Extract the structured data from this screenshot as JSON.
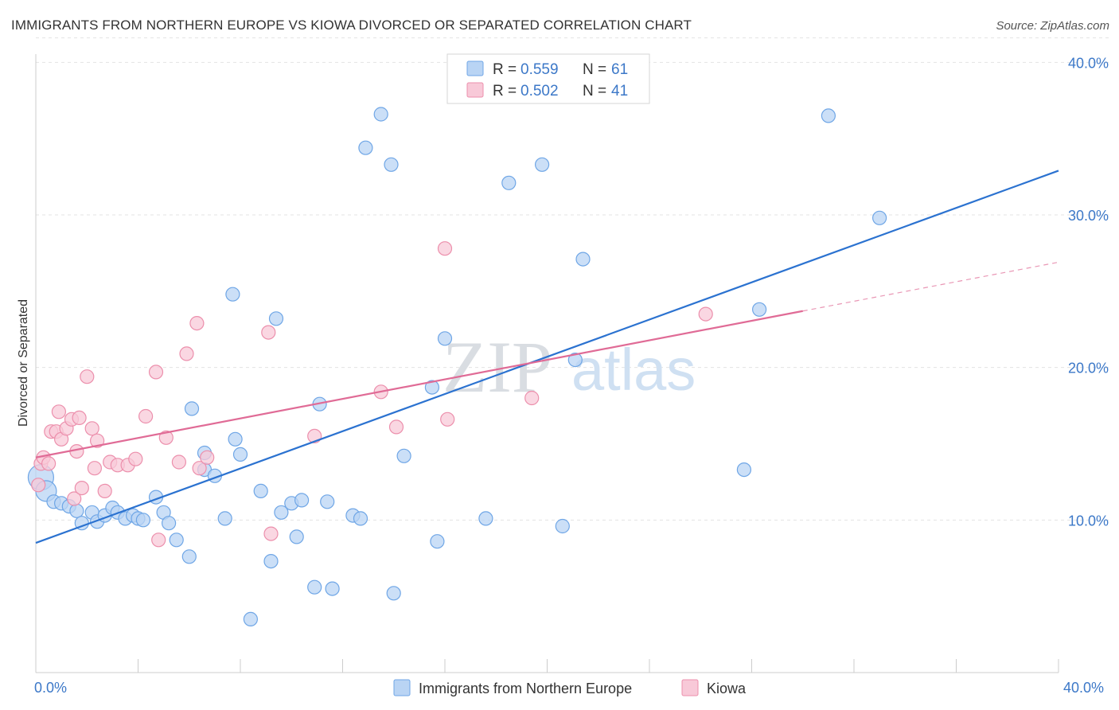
{
  "header": {
    "title": "IMMIGRANTS FROM NORTHERN EUROPE VS KIOWA DIVORCED OR SEPARATED CORRELATION CHART",
    "source": "Source: ZipAtlas.com"
  },
  "watermark": {
    "zip": "ZIP",
    "atlas": "atlas"
  },
  "legend": {
    "r_label": "R = ",
    "n_label": "N = ",
    "entries": [
      {
        "r": "0.559",
        "n": "61"
      },
      {
        "r": "0.502",
        "n": "41"
      }
    ]
  },
  "chart_data": {
    "type": "scatter",
    "title": "IMMIGRANTS FROM NORTHERN EUROPE VS KIOWA DIVORCED OR SEPARATED CORRELATION CHART",
    "xlabel": "",
    "ylabel": "Divorced or Separated",
    "xlim": [
      0,
      40
    ],
    "ylim": [
      0,
      42
    ],
    "x_tick_labels": [
      "0.0%",
      "40.0%"
    ],
    "y_ticks": [
      {
        "value": 10,
        "label": "10.0%"
      },
      {
        "value": 20,
        "label": "20.0%"
      },
      {
        "value": 30,
        "label": "30.0%"
      },
      {
        "value": 40,
        "label": "40.0%"
      }
    ],
    "grid": true,
    "legend_position": "top-center",
    "series": [
      {
        "name": "Immigrants from Northern Europe",
        "color": "#6fa6e6",
        "fill": "#b9d4f4",
        "line_color": "#2b72d0",
        "trend": {
          "x": [
            0,
            40
          ],
          "y": [
            8.5,
            32.9
          ]
        },
        "points": [
          [
            0.2,
            12.8
          ],
          [
            0.4,
            11.9
          ],
          [
            0.7,
            11.2
          ],
          [
            1.0,
            11.1
          ],
          [
            1.3,
            10.9
          ],
          [
            1.6,
            10.6
          ],
          [
            1.8,
            9.8
          ],
          [
            2.2,
            10.5
          ],
          [
            2.4,
            9.9
          ],
          [
            2.7,
            10.3
          ],
          [
            3.0,
            10.8
          ],
          [
            3.2,
            10.5
          ],
          [
            3.5,
            10.1
          ],
          [
            3.8,
            10.3
          ],
          [
            4.0,
            10.1
          ],
          [
            4.2,
            10.0
          ],
          [
            4.7,
            11.5
          ],
          [
            5.0,
            10.5
          ],
          [
            5.2,
            9.8
          ],
          [
            5.5,
            8.7
          ],
          [
            6.0,
            7.6
          ],
          [
            6.1,
            17.3
          ],
          [
            6.6,
            14.4
          ],
          [
            6.6,
            13.3
          ],
          [
            7.0,
            12.9
          ],
          [
            7.4,
            10.1
          ],
          [
            7.7,
            24.8
          ],
          [
            7.8,
            15.3
          ],
          [
            8.0,
            14.3
          ],
          [
            8.4,
            3.5
          ],
          [
            8.8,
            11.9
          ],
          [
            9.2,
            7.3
          ],
          [
            9.4,
            23.2
          ],
          [
            9.6,
            10.5
          ],
          [
            10.0,
            11.1
          ],
          [
            10.2,
            8.9
          ],
          [
            10.4,
            11.3
          ],
          [
            10.9,
            5.6
          ],
          [
            11.1,
            17.6
          ],
          [
            11.4,
            11.2
          ],
          [
            11.6,
            5.5
          ],
          [
            12.4,
            10.3
          ],
          [
            12.7,
            10.1
          ],
          [
            12.9,
            34.4
          ],
          [
            13.5,
            36.6
          ],
          [
            13.9,
            33.3
          ],
          [
            14.0,
            5.2
          ],
          [
            14.4,
            14.2
          ],
          [
            15.5,
            18.7
          ],
          [
            15.7,
            8.6
          ],
          [
            16.0,
            21.9
          ],
          [
            17.6,
            10.1
          ],
          [
            18.5,
            32.1
          ],
          [
            19.8,
            33.3
          ],
          [
            20.6,
            9.6
          ],
          [
            21.1,
            20.5
          ],
          [
            21.4,
            27.1
          ],
          [
            27.7,
            13.3
          ],
          [
            28.3,
            23.8
          ],
          [
            31.0,
            36.5
          ],
          [
            33.0,
            29.8
          ]
        ]
      },
      {
        "name": "Kiowa",
        "color": "#ec8fac",
        "fill": "#f8c9d8",
        "line_color": "#e06b96",
        "trend": {
          "x": [
            0,
            30
          ],
          "y": [
            14.1,
            23.7
          ]
        },
        "trend_dashed": {
          "x": [
            30,
            40
          ],
          "y": [
            23.7,
            26.9
          ]
        },
        "points": [
          [
            0.1,
            12.3
          ],
          [
            0.2,
            13.7
          ],
          [
            0.3,
            14.1
          ],
          [
            0.5,
            13.7
          ],
          [
            0.6,
            15.8
          ],
          [
            0.8,
            15.8
          ],
          [
            0.9,
            17.1
          ],
          [
            1.0,
            15.3
          ],
          [
            1.2,
            16.0
          ],
          [
            1.4,
            16.6
          ],
          [
            1.5,
            11.4
          ],
          [
            1.6,
            14.5
          ],
          [
            1.7,
            16.7
          ],
          [
            1.8,
            12.1
          ],
          [
            2.0,
            19.4
          ],
          [
            2.2,
            16.0
          ],
          [
            2.3,
            13.4
          ],
          [
            2.4,
            15.2
          ],
          [
            2.7,
            11.9
          ],
          [
            2.9,
            13.8
          ],
          [
            3.2,
            13.6
          ],
          [
            3.6,
            13.6
          ],
          [
            3.9,
            14.0
          ],
          [
            4.3,
            16.8
          ],
          [
            4.7,
            19.7
          ],
          [
            4.8,
            8.7
          ],
          [
            5.1,
            15.4
          ],
          [
            5.6,
            13.8
          ],
          [
            5.9,
            20.9
          ],
          [
            6.3,
            22.9
          ],
          [
            6.4,
            13.4
          ],
          [
            6.7,
            14.1
          ],
          [
            9.1,
            22.3
          ],
          [
            9.2,
            9.1
          ],
          [
            10.9,
            15.5
          ],
          [
            13.5,
            18.4
          ],
          [
            14.1,
            16.1
          ],
          [
            16.0,
            27.8
          ],
          [
            16.1,
            16.6
          ],
          [
            19.4,
            18.0
          ],
          [
            26.2,
            23.5
          ]
        ]
      }
    ]
  },
  "bottom_legend": {
    "items": [
      {
        "label": "Immigrants from Northern Europe"
      },
      {
        "label": "Kiowa"
      }
    ]
  }
}
